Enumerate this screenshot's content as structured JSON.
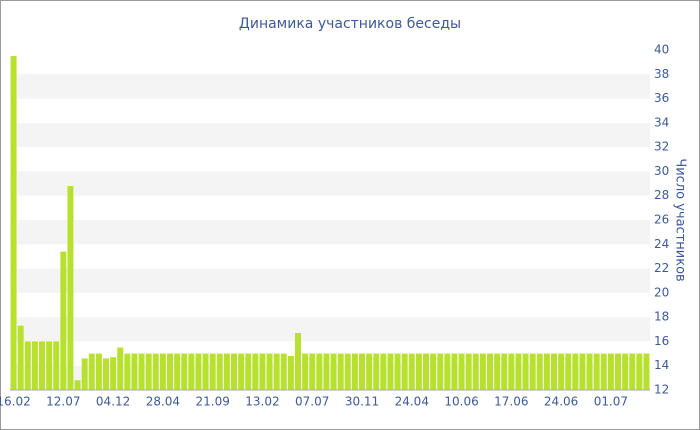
{
  "chart_data": {
    "type": "bar",
    "title": "Динамика участников беседы",
    "y_axis_label": "Число участников",
    "categories": [
      "16.02",
      null,
      null,
      null,
      null,
      null,
      null,
      "12.07",
      null,
      null,
      null,
      null,
      null,
      null,
      "04.12",
      null,
      null,
      null,
      null,
      null,
      null,
      "28.04",
      null,
      null,
      null,
      null,
      null,
      null,
      "21.09",
      null,
      null,
      null,
      null,
      null,
      null,
      "13.02",
      null,
      null,
      null,
      null,
      null,
      null,
      "07.07",
      null,
      null,
      null,
      null,
      null,
      null,
      "30.11",
      null,
      null,
      null,
      null,
      null,
      null,
      "24.04",
      null,
      null,
      null,
      null,
      null,
      null,
      "10.06",
      null,
      null,
      null,
      null,
      null,
      null,
      "17.06",
      null,
      null,
      null,
      null,
      null,
      null,
      "24.06",
      null,
      null,
      null,
      null,
      null,
      null,
      "01.07",
      null,
      null,
      null,
      null,
      null
    ],
    "values": [
      39.5,
      17.3,
      16,
      16,
      16,
      16,
      16,
      23.4,
      28.8,
      12.8,
      14.6,
      15,
      15,
      14.6,
      14.7,
      15.5,
      15,
      15,
      15,
      15,
      15,
      15,
      15,
      15,
      15,
      15,
      15,
      15,
      15,
      15,
      15,
      15,
      15,
      15,
      15,
      15,
      15,
      15,
      15,
      14.8,
      16.7,
      15,
      15,
      15,
      15,
      15,
      15,
      15,
      15,
      15,
      15,
      15,
      15,
      15,
      15,
      15,
      15,
      15,
      15,
      15,
      15,
      15,
      15,
      15,
      15,
      15,
      15,
      15,
      15,
      15,
      15,
      15,
      15,
      15,
      15,
      15,
      15,
      15,
      15,
      15,
      15,
      15,
      15,
      15,
      15,
      15,
      15,
      15,
      15,
      15
    ],
    "color": "#b8e02e",
    "ylim": [
      12,
      40
    ],
    "yticks": [
      12,
      14,
      16,
      18,
      20,
      22,
      24,
      26,
      28,
      30,
      32,
      34,
      36,
      38,
      40
    ],
    "grid": true,
    "y_axis_side": "right"
  }
}
